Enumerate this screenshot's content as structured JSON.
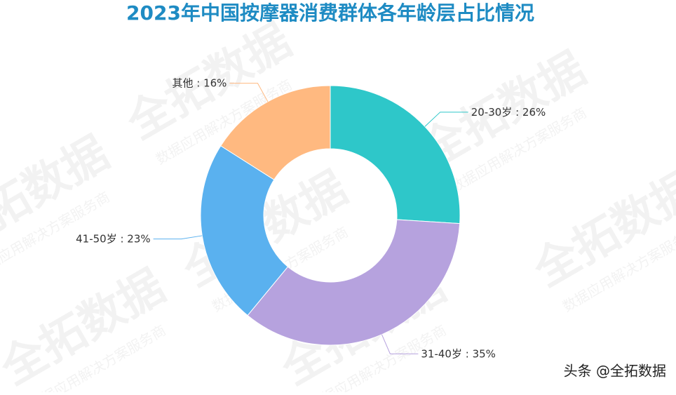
{
  "chart_data": {
    "type": "pie",
    "title": "2023年中国按摩器消费群体各年龄层占比情况",
    "categories": [
      "20-30岁",
      "31-40岁",
      "41-50岁",
      "其他"
    ],
    "values": [
      26,
      35,
      23,
      16
    ],
    "value_labels": [
      "26%",
      "35%",
      "23%",
      "16%"
    ],
    "label_separator": " : ",
    "colors": [
      "#2ec7c9",
      "#b6a2de",
      "#5ab1ef",
      "#ffb980"
    ]
  },
  "watermark": {
    "brand": "全拓数据",
    "slogan": "数据应用解决方案服务商"
  },
  "footer": "头条 @全拓数据"
}
